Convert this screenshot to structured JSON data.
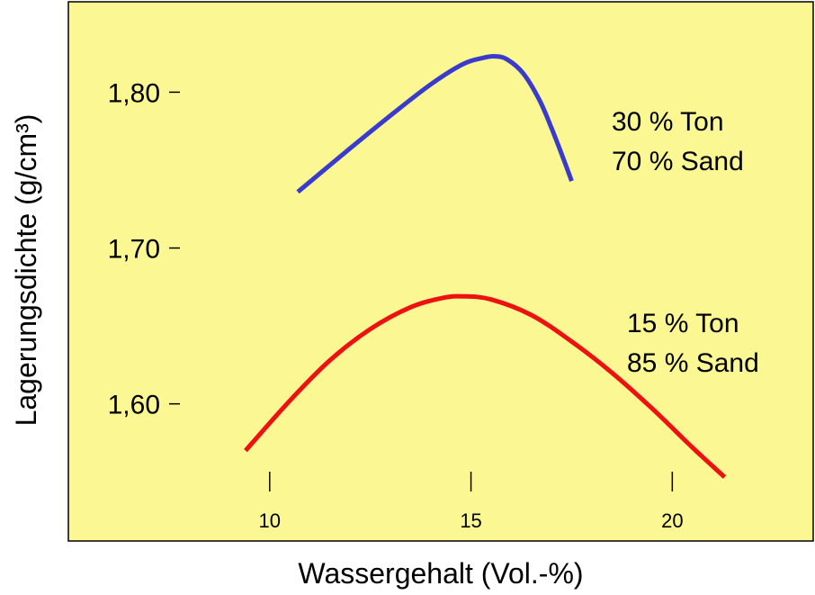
{
  "chart_data": {
    "type": "line",
    "xlabel": "Wassergehalt (Vol.-%)",
    "ylabel": "Lagerungsdichte (g/cm³)",
    "xlim": [
      5,
      23.5
    ],
    "ylim": [
      1.512,
      1.858
    ],
    "x_ticks": [
      {
        "value": 10,
        "label": "10"
      },
      {
        "value": 15,
        "label": "15"
      },
      {
        "value": 20,
        "label": "20"
      }
    ],
    "y_ticks": [
      {
        "value": 1.6,
        "label": "1,60"
      },
      {
        "value": 1.7,
        "label": "1,70"
      },
      {
        "value": 1.8,
        "label": "1,80"
      }
    ],
    "grid": false,
    "background_color": "#FBF792",
    "series": [
      {
        "label_lines": [
          "30 % Ton",
          "70 % Sand"
        ],
        "color": "#3A3ACC",
        "x": [
          10.7,
          12.0,
          13.0,
          14.0,
          14.8,
          15.3,
          15.6,
          15.9,
          16.3,
          16.7,
          17.0,
          17.3,
          17.5
        ],
        "y": [
          1.736,
          1.764,
          1.785,
          1.805,
          1.818,
          1.822,
          1.823,
          1.821,
          1.812,
          1.795,
          1.777,
          1.757,
          1.743
        ]
      },
      {
        "label_lines": [
          "15 % Ton",
          "85 % Sand"
        ],
        "color": "#EE1111",
        "x": [
          9.4,
          10.5,
          11.5,
          12.5,
          13.5,
          14.3,
          14.8,
          15.5,
          16.5,
          17.5,
          18.5,
          19.5,
          20.5,
          21.3
        ],
        "y": [
          1.57,
          1.602,
          1.628,
          1.648,
          1.662,
          1.668,
          1.669,
          1.667,
          1.657,
          1.64,
          1.62,
          1.597,
          1.572,
          1.553
        ]
      }
    ]
  }
}
